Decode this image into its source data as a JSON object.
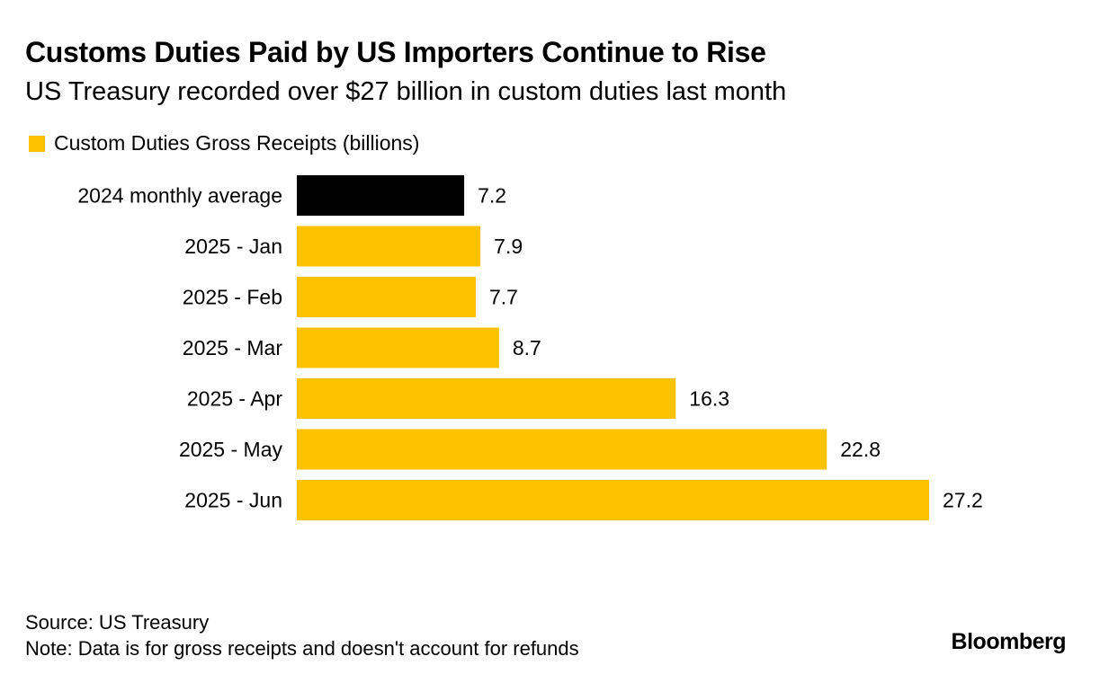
{
  "chart_data": {
    "type": "bar",
    "orientation": "horizontal",
    "title": "Customs Duties Paid by US Importers Continue to Rise",
    "subtitle": "US Treasury recorded over $27 billion in custom duties last month",
    "categories": [
      "2024 monthly average",
      "2025 - Jan",
      "2025 - Feb",
      "2025 - Mar",
      "2025 - Apr",
      "2025 - May",
      "2025 - Jun"
    ],
    "series": [
      {
        "name": "Custom Duties Gross Receipts (billions)",
        "values": [
          7.2,
          7.9,
          7.7,
          8.7,
          16.3,
          22.8,
          27.2
        ],
        "labels": [
          "7.2",
          "7.9",
          "7.7",
          "8.7",
          "16.3",
          "22.8",
          "27.2"
        ]
      }
    ],
    "bar_colors": [
      "#000000",
      "#fcc200",
      "#fcc200",
      "#fcc200",
      "#fcc200",
      "#fcc200",
      "#fcc200"
    ],
    "legend_color": "#fcc200",
    "xlim": [
      0,
      27.2
    ],
    "grid": false,
    "legend_position": "top-left"
  },
  "footer": {
    "source": "Source: US Treasury",
    "note": "Note: Data is for gross receipts and doesn't account for refunds"
  },
  "brand": "Bloomberg"
}
